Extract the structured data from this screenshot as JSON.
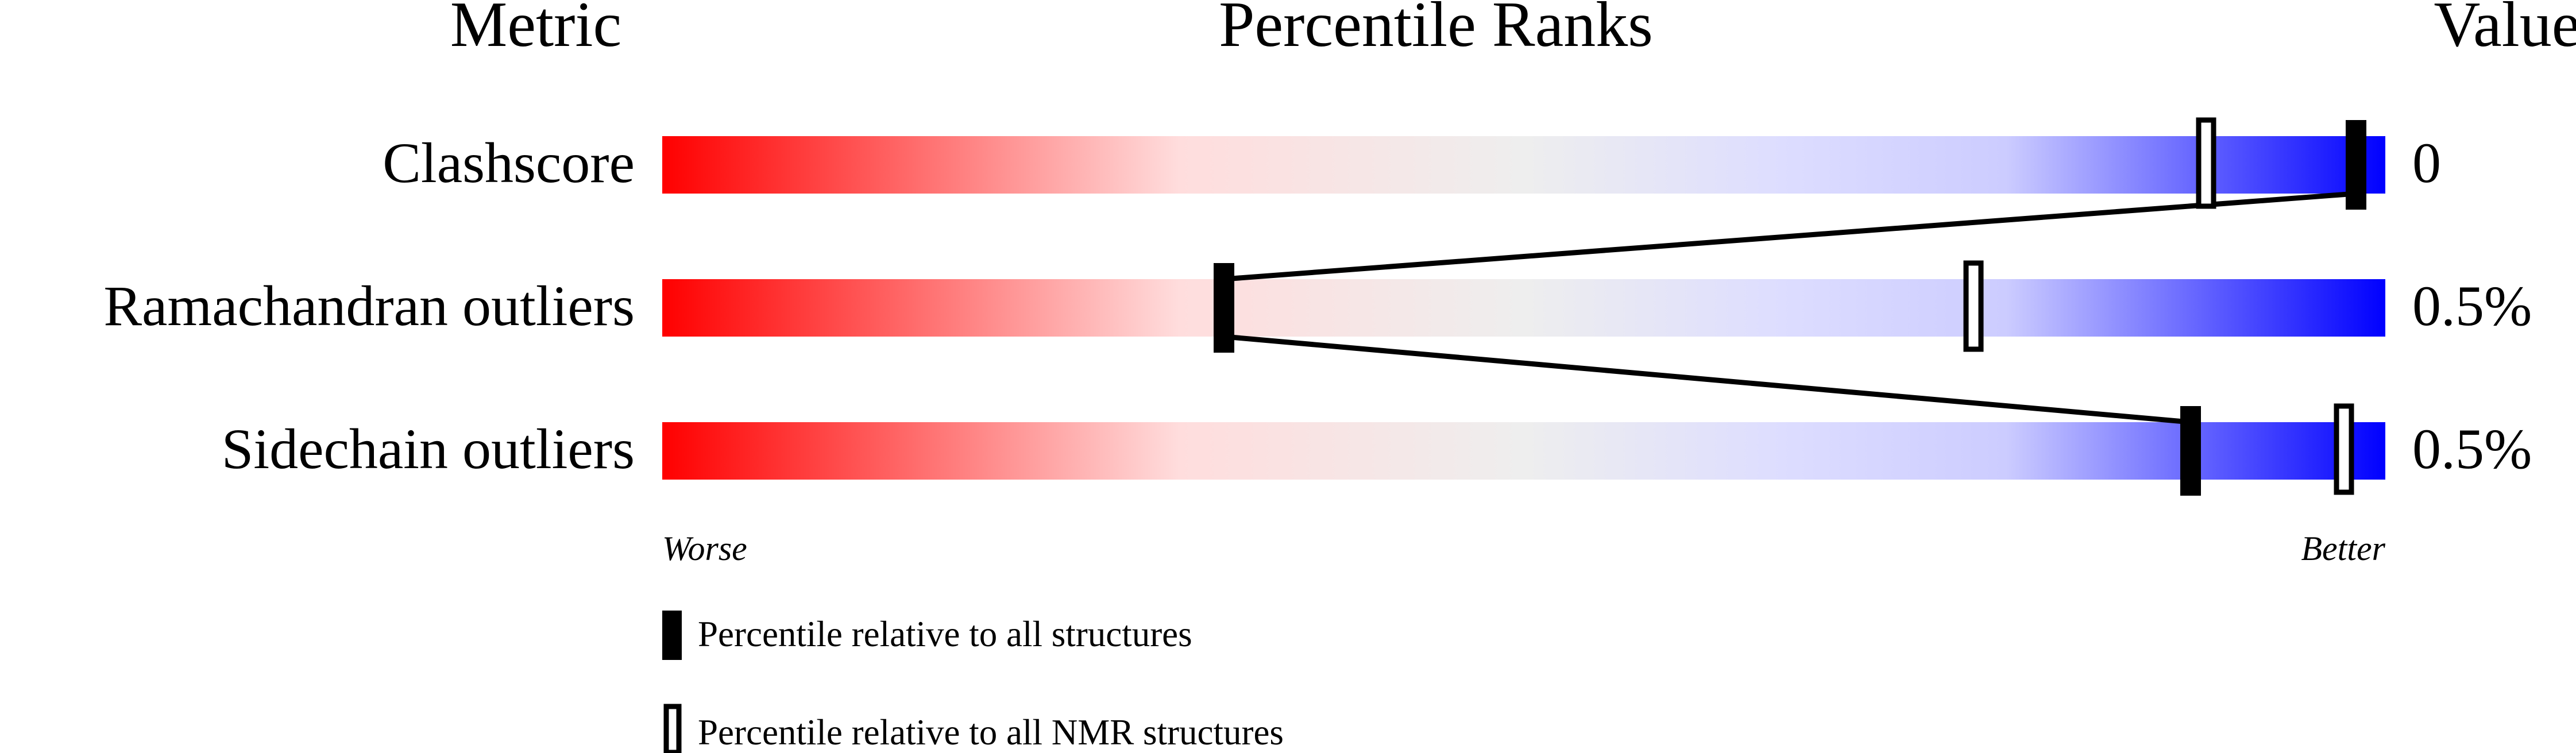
{
  "chart_data": {
    "type": "percentile-slider",
    "headers": {
      "metric": "Metric",
      "ranks": "Percentile Ranks",
      "value": "Value"
    },
    "xlim": [
      0,
      100
    ],
    "metrics": [
      {
        "name": "Clashscore",
        "value": "0",
        "percentile_all": 98.3,
        "percentile_nmr": 89.6
      },
      {
        "name": "Ramachandran outliers",
        "value": "0.5%",
        "percentile_all": 32.6,
        "percentile_nmr": 76.1
      },
      {
        "name": "Sidechain outliers",
        "value": "0.5%",
        "percentile_all": 88.7,
        "percentile_nmr": 97.6
      }
    ],
    "axis_labels": {
      "worse": "Worse",
      "better": "Better"
    },
    "legend": [
      {
        "marker": "filled",
        "label": "Percentile relative to all structures"
      },
      {
        "marker": "open",
        "label": "Percentile relative to all NMR structures"
      }
    ],
    "colors": {
      "worse": "#ff0000",
      "mid": "#eeeeee",
      "better": "#0000ff"
    }
  }
}
